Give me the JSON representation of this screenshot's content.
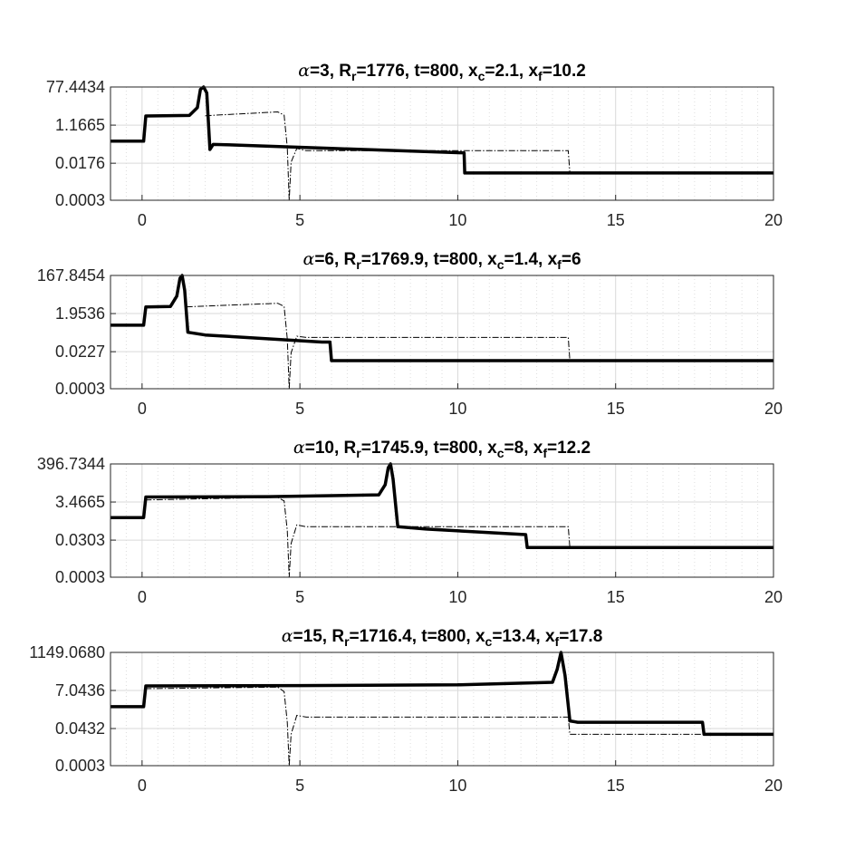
{
  "chart_data": [
    {
      "type": "line",
      "title": {
        "alpha": "3",
        "rest": ", R",
        "sub1": "r",
        "rest2": "=1776, t=800, x",
        "sub2": "c",
        "rest3": "=2.1, x",
        "sub3": "f",
        "rest4": "=10.2"
      },
      "xlim": [
        -1,
        20
      ],
      "x_ticks": [
        0,
        5,
        10,
        15,
        20
      ],
      "y_scale": "log",
      "y_tick_labels": [
        "0.0003",
        "0.0176",
        "1.1665",
        "77.4434"
      ],
      "x_c": 2.1,
      "x_f": 10.2,
      "grid": true,
      "series": [
        {
          "style": "solid-thick",
          "points": [
            [
              -1,
              0.2
            ],
            [
              0.05,
              0.2
            ],
            [
              0.12,
              3.2
            ],
            [
              1.5,
              3.4
            ],
            [
              1.75,
              8
            ],
            [
              1.85,
              60
            ],
            [
              1.95,
              77.44
            ],
            [
              2.05,
              40
            ],
            [
              2.15,
              0.08
            ],
            [
              2.25,
              0.14
            ],
            [
              3,
              0.13
            ],
            [
              6,
              0.09
            ],
            [
              10.2,
              0.055
            ],
            [
              10.22,
              0.006
            ],
            [
              20,
              0.006
            ]
          ]
        },
        {
          "style": "dash-dot-thin",
          "points": [
            [
              2.0,
              3.3
            ],
            [
              4.3,
              5.0
            ],
            [
              4.5,
              3.5
            ],
            [
              4.6,
              0.1
            ],
            [
              4.66,
              0.0003
            ],
            [
              4.72,
              0.02
            ],
            [
              4.9,
              0.09
            ],
            [
              5.2,
              0.07
            ],
            [
              13.5,
              0.07
            ],
            [
              13.55,
              0.006
            ]
          ]
        }
      ]
    },
    {
      "type": "line",
      "title": {
        "alpha": "6",
        "rest": ", R",
        "sub1": "r",
        "rest2": "=1769.9, t=800, x",
        "sub2": "c",
        "rest3": "=1.4, x",
        "sub3": "f",
        "rest4": "=6"
      },
      "xlim": [
        -1,
        20
      ],
      "x_ticks": [
        0,
        5,
        10,
        15,
        20
      ],
      "y_scale": "log",
      "y_tick_labels": [
        "0.0003",
        "0.0227",
        "1.9536",
        "167.8454"
      ],
      "x_c": 1.4,
      "x_f": 6,
      "grid": true,
      "series": [
        {
          "style": "solid-thick",
          "points": [
            [
              -1,
              0.5
            ],
            [
              0.05,
              0.5
            ],
            [
              0.12,
              4.2
            ],
            [
              0.9,
              4.5
            ],
            [
              1.1,
              15
            ],
            [
              1.2,
              120
            ],
            [
              1.27,
              167.85
            ],
            [
              1.35,
              30
            ],
            [
              1.45,
              0.22
            ],
            [
              2,
              0.16
            ],
            [
              5.7,
              0.07
            ],
            [
              5.95,
              0.07
            ],
            [
              6.0,
              0.008
            ],
            [
              20,
              0.008
            ]
          ]
        },
        {
          "style": "dash-dot-thin",
          "points": [
            [
              1.4,
              4.3
            ],
            [
              4.3,
              6.5
            ],
            [
              4.5,
              4.5
            ],
            [
              4.6,
              0.1
            ],
            [
              4.66,
              0.0003
            ],
            [
              4.72,
              0.02
            ],
            [
              4.9,
              0.14
            ],
            [
              5.2,
              0.12
            ],
            [
              13.5,
              0.12
            ],
            [
              13.55,
              0.008
            ]
          ]
        }
      ]
    },
    {
      "type": "line",
      "title": {
        "alpha": "10",
        "rest": ", R",
        "sub1": "r",
        "rest2": "=1745.9, t=800, x",
        "sub2": "c",
        "rest3": "=8, x",
        "sub3": "f",
        "rest4": "=12.2"
      },
      "xlim": [
        -1,
        20
      ],
      "x_ticks": [
        0,
        5,
        10,
        15,
        20
      ],
      "y_scale": "log",
      "y_tick_labels": [
        "0.0003",
        "0.0303",
        "3.4665",
        "396.7344"
      ],
      "x_c": 8,
      "x_f": 12.2,
      "grid": true,
      "series": [
        {
          "style": "solid-thick",
          "points": [
            [
              -1,
              0.5
            ],
            [
              0.05,
              0.5
            ],
            [
              0.12,
              6.5
            ],
            [
              4,
              6.8
            ],
            [
              7.5,
              8.5
            ],
            [
              7.7,
              30
            ],
            [
              7.8,
              250
            ],
            [
              7.87,
              396.73
            ],
            [
              7.95,
              60
            ],
            [
              8.1,
              0.16
            ],
            [
              9,
              0.12
            ],
            [
              12.15,
              0.06
            ],
            [
              12.2,
              0.012
            ],
            [
              20,
              0.012
            ]
          ]
        },
        {
          "style": "dash-dot-thin",
          "points": [
            [
              0.1,
              4.5
            ],
            [
              4.3,
              6.2
            ],
            [
              4.5,
              4
            ],
            [
              4.6,
              0.1
            ],
            [
              4.66,
              0.0003
            ],
            [
              4.72,
              0.02
            ],
            [
              4.9,
              0.2
            ],
            [
              5.2,
              0.16
            ],
            [
              13.5,
              0.16
            ],
            [
              13.55,
              0.012
            ]
          ]
        }
      ]
    },
    {
      "type": "line",
      "title": {
        "alpha": "15",
        "rest": ", R",
        "sub1": "r",
        "rest2": "=1716.4, t=800, x",
        "sub2": "c",
        "rest3": "=13.4, x",
        "sub3": "f",
        "rest4": "=17.8"
      },
      "xlim": [
        -1,
        20
      ],
      "x_ticks": [
        0,
        5,
        10,
        15,
        20
      ],
      "y_scale": "log",
      "y_tick_labels": [
        "0.0003",
        "0.0432",
        "7.0436",
        "1149.0680"
      ],
      "x_c": 13.4,
      "x_f": 17.8,
      "grid": true,
      "series": [
        {
          "style": "solid-thick",
          "points": [
            [
              -1,
              0.8
            ],
            [
              0.05,
              0.8
            ],
            [
              0.12,
              13
            ],
            [
              5,
              13.5
            ],
            [
              10,
              15
            ],
            [
              13.0,
              21
            ],
            [
              13.15,
              120
            ],
            [
              13.27,
              1149.07
            ],
            [
              13.4,
              50
            ],
            [
              13.55,
              0.12
            ],
            [
              13.8,
              0.1
            ],
            [
              17.75,
              0.1
            ],
            [
              17.8,
              0.02
            ],
            [
              20,
              0.02
            ]
          ]
        },
        {
          "style": "dash-dot-thin",
          "points": [
            [
              0.1,
              9
            ],
            [
              4.3,
              11
            ],
            [
              4.5,
              6
            ],
            [
              4.6,
              0.1
            ],
            [
              4.66,
              0.0003
            ],
            [
              4.72,
              0.02
            ],
            [
              4.9,
              0.25
            ],
            [
              5.2,
              0.2
            ],
            [
              13.5,
              0.2
            ],
            [
              13.55,
              0.02
            ],
            [
              20,
              0.02
            ]
          ]
        }
      ]
    }
  ]
}
